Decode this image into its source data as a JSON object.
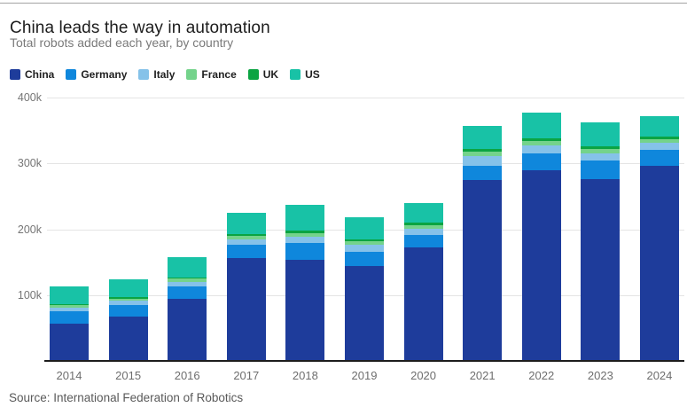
{
  "header": {
    "title": "China leads the way in automation",
    "subtitle": "Total robots added each year, by country"
  },
  "source_line": "Source: International Federation of Robotics",
  "colors": {
    "china": "#1e3c9b",
    "germany": "#0f87dc",
    "italy": "#85c2e9",
    "france": "#74d38b",
    "uk": "#0ba442",
    "us": "#18c2a6",
    "gridline": "#e4e4e4",
    "axis": "#1d1d1d",
    "tick_text": "#757575"
  },
  "chart_data": {
    "type": "bar",
    "stacked": true,
    "grid": true,
    "legend_position": "top",
    "title": "China leads the way in automation",
    "subtitle": "Total robots added each year, by country",
    "xlabel": "",
    "ylabel": "",
    "ylim": [
      0,
      400000
    ],
    "yticks": [
      {
        "value": 100000,
        "label": "100k"
      },
      {
        "value": 200000,
        "label": "200k"
      },
      {
        "value": 300000,
        "label": "300k"
      },
      {
        "value": 400000,
        "label": "400k"
      }
    ],
    "categories": [
      "2014",
      "2015",
      "2016",
      "2017",
      "2018",
      "2019",
      "2020",
      "2021",
      "2022",
      "2023",
      "2024"
    ],
    "series": [
      {
        "name": "China",
        "color": "#1e3c9b",
        "values": [
          57000,
          68000,
          95000,
          156000,
          154000,
          144500,
          172000,
          275000,
          290000,
          276000,
          296000
        ]
      },
      {
        "name": "Germany",
        "color": "#0f87dc",
        "values": [
          18000,
          17000,
          18000,
          21000,
          25000,
          21000,
          20000,
          22000,
          26000,
          28000,
          25500
        ]
      },
      {
        "name": "Italy",
        "color": "#85c2e9",
        "values": [
          6500,
          6500,
          7500,
          8000,
          10000,
          10500,
          9500,
          15000,
          11500,
          11000,
          10000
        ]
      },
      {
        "name": "France",
        "color": "#74d38b",
        "values": [
          3000,
          3000,
          4200,
          4500,
          5500,
          5500,
          5500,
          6000,
          7000,
          6500,
          6000
        ]
      },
      {
        "name": "UK",
        "color": "#0ba442",
        "values": [
          2100,
          2000,
          2000,
          3000,
          3000,
          3000,
          3500,
          4000,
          4000,
          4200,
          4000
        ]
      },
      {
        "name": "US",
        "color": "#18c2a6",
        "values": [
          26500,
          28000,
          31400,
          33000,
          40000,
          34000,
          30000,
          35000,
          39000,
          37000,
          30000
        ]
      }
    ],
    "totals": [
      113100,
      124500,
      158100,
      225500,
      237500,
      218500,
      240500,
      357000,
      377500,
      362700,
      371500
    ]
  }
}
